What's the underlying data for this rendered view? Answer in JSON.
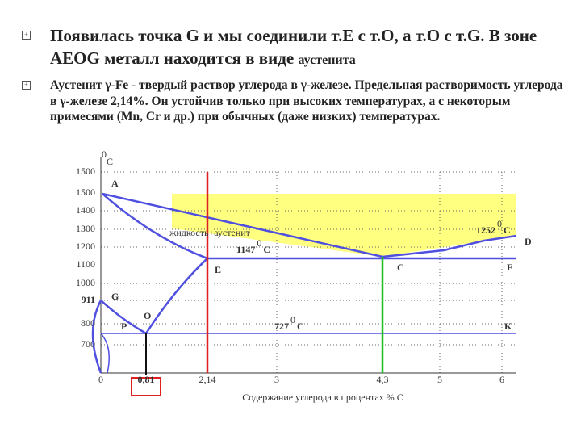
{
  "bullets": [
    {
      "text": "Появилась точка G и мы  соединили т.Е с т.О, а т.О с т.G. В зоне AEOG  металл находится в виде",
      "tail": "аустенита"
    },
    {
      "text": "Аустенит γ-Fe - твердый раствор углерода в γ-железе. Предельная растворимость углерода в γ-железе 2,14%. Он устойчив только при высоких температурах, а с некоторым примесями (Mn, Cr и др.) при обычных (даже низких) температурах."
    }
  ],
  "figure": {
    "unit_top": {
      "sup": "0",
      "text": "C"
    },
    "y_labels": [
      "1500",
      "1500",
      "1400",
      "1300",
      "1200",
      "1100",
      "1000",
      "911",
      "800",
      "700"
    ],
    "x_labels": [
      "0",
      "0,81",
      "2,14",
      "3",
      "4,3",
      "5",
      "6"
    ],
    "x_title": "Содержание углерода  в процентах   % С",
    "points": [
      "A",
      "G",
      "P",
      "O",
      "E",
      "C",
      "F",
      "D",
      "K"
    ],
    "region": "жидкость+аустенит",
    "temps": [
      {
        "value": "1147",
        "sup": "0",
        "unit": "C"
      },
      {
        "value": "727",
        "sup": "0",
        "unit": "C"
      },
      {
        "value": "1252",
        "sup": "0",
        "unit": "C"
      }
    ]
  }
}
